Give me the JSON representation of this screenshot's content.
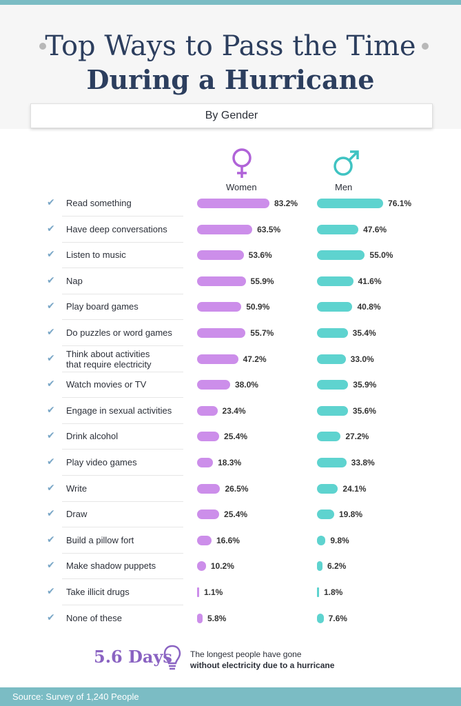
{
  "title_line1": "Top Ways to Pass the Time",
  "title_line2": "During a Hurricane",
  "subtitle": "By Gender",
  "colors": {
    "women": "#cc8eea",
    "men": "#5ed3cf",
    "title": "#2c3e5e",
    "accent": "#8a63c2",
    "band": "#7bbcc4"
  },
  "icons": {
    "women": "female-symbol-icon",
    "men": "male-symbol-icon",
    "row": "checkmark-icon",
    "footer": "lightbulb-icon"
  },
  "chart_data": {
    "type": "bar",
    "orientation": "horizontal",
    "categories": [
      "Read something",
      "Have deep conversations",
      "Listen to music",
      "Nap",
      "Play board games",
      "Do puzzles or word games",
      "Think about activities that require electricity",
      "Watch movies or TV",
      "Engage in sexual activities",
      "Drink alcohol",
      "Play video games",
      "Write",
      "Draw",
      "Build a pillow fort",
      "Make shadow puppets",
      "Take illicit drugs",
      "None of these"
    ],
    "categories_display": [
      [
        "Read something"
      ],
      [
        "Have deep conversations"
      ],
      [
        "Listen to music"
      ],
      [
        "Nap"
      ],
      [
        "Play board games"
      ],
      [
        "Do puzzles or word games"
      ],
      [
        "Think about activities",
        "that require electricity"
      ],
      [
        "Watch movies or TV"
      ],
      [
        "Engage in sexual activities"
      ],
      [
        "Drink alcohol"
      ],
      [
        "Play video games"
      ],
      [
        "Write"
      ],
      [
        "Draw"
      ],
      [
        "Build a pillow fort"
      ],
      [
        "Make shadow puppets"
      ],
      [
        "Take illicit drugs"
      ],
      [
        "None of these"
      ]
    ],
    "series": [
      {
        "name": "Women",
        "values": [
          83.2,
          63.5,
          53.6,
          55.9,
          50.9,
          55.7,
          47.2,
          38.0,
          23.4,
          25.4,
          18.3,
          26.5,
          25.4,
          16.6,
          10.2,
          1.1,
          5.8
        ]
      },
      {
        "name": "Men",
        "values": [
          76.1,
          47.6,
          55.0,
          41.6,
          40.8,
          35.4,
          33.0,
          35.9,
          35.6,
          27.2,
          33.8,
          24.1,
          19.8,
          9.8,
          6.2,
          1.8,
          7.6
        ]
      }
    ],
    "value_suffix": "%",
    "xlim": [
      0,
      100
    ]
  },
  "footer": {
    "stat": "5.6 Days",
    "text_line1": "The longest people have gone",
    "text_line2": "without electricity due to a hurricane"
  },
  "source": "Source: Survey of 1,240 People"
}
